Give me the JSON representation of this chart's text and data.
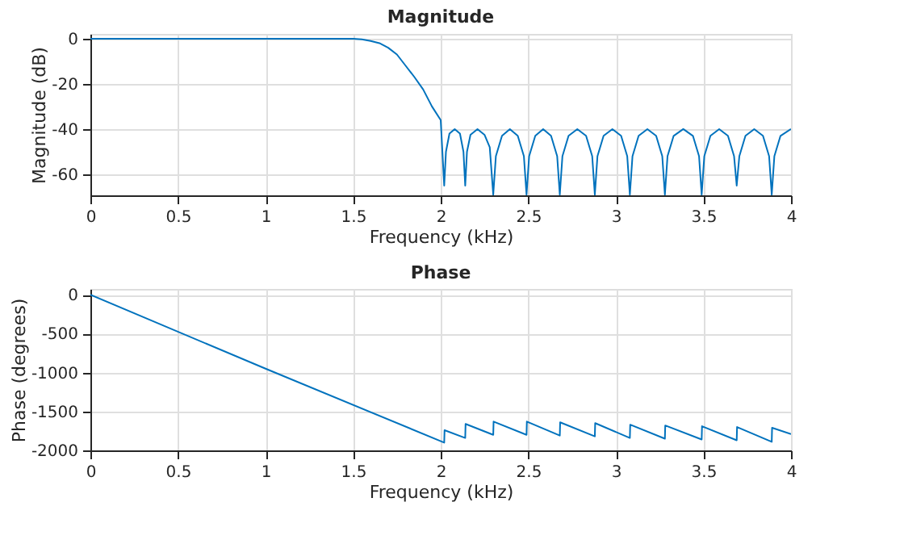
{
  "chart_data": [
    {
      "type": "line",
      "title": "Magnitude",
      "xlabel": "Frequency (kHz)",
      "ylabel": "Magnitude (dB)",
      "series": [
        {
          "color": "#0072bd",
          "x": [
            0,
            0.5,
            1,
            1.5,
            1.55,
            1.6,
            1.65,
            1.7,
            1.75,
            1.8,
            1.85,
            1.9,
            1.95,
            2.0,
            2.02,
            2.03,
            2.05,
            2.08,
            2.11,
            2.13,
            2.14,
            2.15,
            2.17,
            2.21,
            2.25,
            2.28,
            2.3,
            2.315,
            2.35,
            2.395,
            2.44,
            2.475,
            2.49,
            2.505,
            2.54,
            2.585,
            2.63,
            2.665,
            2.68,
            2.695,
            2.73,
            2.78,
            2.83,
            2.865,
            2.88,
            2.895,
            2.93,
            2.98,
            3.03,
            3.065,
            3.08,
            3.095,
            3.13,
            3.18,
            3.23,
            3.265,
            3.28,
            3.295,
            3.33,
            3.385,
            3.44,
            3.475,
            3.49,
            3.505,
            3.54,
            3.59,
            3.64,
            3.675,
            3.69,
            3.705,
            3.74,
            3.79,
            3.84,
            3.875,
            3.89,
            3.905,
            3.94,
            4.0
          ],
          "values": [
            0,
            0,
            0,
            0,
            -0.3,
            -1,
            -2,
            -4,
            -7,
            -12,
            -17,
            -22.5,
            -30,
            -36,
            -65,
            -50,
            -42,
            -40,
            -42,
            -50,
            -65,
            -50,
            -42.5,
            -40,
            -42.5,
            -48,
            -69,
            -52,
            -43,
            -40,
            -43,
            -52,
            -69,
            -52,
            -43,
            -40,
            -43,
            -52,
            -69,
            -52,
            -43,
            -40,
            -43,
            -52,
            -69,
            -52,
            -43,
            -40,
            -43,
            -52,
            -69,
            -52,
            -43,
            -40,
            -43,
            -52,
            -69,
            -52,
            -43,
            -40,
            -43,
            -52,
            -69,
            -52,
            -43,
            -40,
            -43,
            -52,
            -65,
            -52,
            -43,
            -40,
            -43,
            -52,
            -69,
            -52,
            -43,
            -40
          ]
        }
      ],
      "xlim": [
        0,
        4
      ],
      "xticks": [
        0,
        0.5,
        1,
        1.5,
        2,
        2.5,
        3,
        3.5,
        4
      ],
      "ylim": [
        -69.3,
        2.1
      ],
      "yticks": [
        -60,
        -40,
        -20,
        0
      ],
      "grid": true
    },
    {
      "type": "line",
      "title": "Phase",
      "xlabel": "Frequency (kHz)",
      "ylabel": "Phase (degrees)",
      "series": [
        {
          "color": "#0072bd",
          "x": [
            0,
            1,
            2.02,
            2.022,
            2.14,
            2.142,
            2.3,
            2.302,
            2.49,
            2.492,
            2.68,
            2.682,
            2.88,
            2.882,
            3.08,
            3.082,
            3.28,
            3.282,
            3.49,
            3.492,
            3.69,
            3.692,
            3.89,
            3.892,
            4.0
          ],
          "values": [
            0,
            -950,
            -1900,
            -1740,
            -1840,
            -1660,
            -1800,
            -1630,
            -1800,
            -1630,
            -1810,
            -1640,
            -1820,
            -1650,
            -1840,
            -1670,
            -1850,
            -1680,
            -1860,
            -1690,
            -1870,
            -1700,
            -1890,
            -1710,
            -1790
          ]
        }
      ],
      "xlim": [
        0,
        4
      ],
      "xticks": [
        0,
        0.5,
        1,
        1.5,
        2,
        2.5,
        3,
        3.5,
        4
      ],
      "ylim": [
        -2000,
        75
      ],
      "yticks": [
        -2000,
        -1500,
        -1000,
        -500,
        0
      ],
      "grid": true
    }
  ]
}
